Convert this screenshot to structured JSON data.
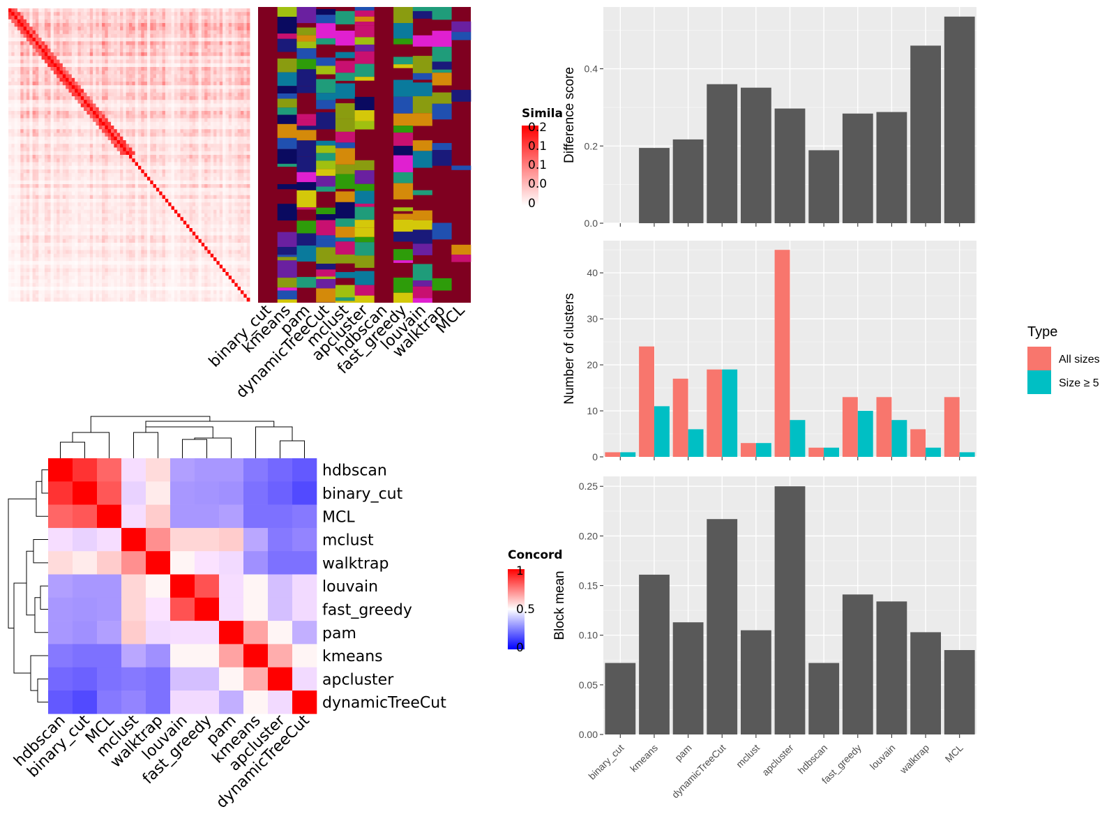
{
  "chart_data": [
    {
      "type": "heatmap",
      "id": "similarity_heatmap",
      "legend": {
        "title": "Simila",
        "labels": [
          "0.2",
          "0.1",
          "0.1",
          "0.0",
          "0"
        ]
      },
      "colors": {
        "high": "#ff0000",
        "low": "#ffffff"
      }
    },
    {
      "type": "heatmap",
      "id": "cluster_assignment_strip",
      "columns": [
        "binary_cut",
        "kmeans",
        "pam",
        "dynamicTreeCut",
        "mclust",
        "apcluster",
        "hdbscan",
        "fast_greedy",
        "louvain",
        "walktrap",
        "MCL"
      ],
      "colors": {
        "background": "#7f0020"
      }
    },
    {
      "type": "heatmap",
      "id": "concordance_heatmap",
      "legend": {
        "title": "Concord",
        "labels": [
          "1",
          "0.5",
          "0"
        ]
      },
      "colors": {
        "high": "#ff0000",
        "mid": "#ffffff",
        "low": "#0000ff"
      },
      "row_labels": [
        "hdbscan",
        "binary_cut",
        "MCL",
        "mclust",
        "walktrap",
        "louvain",
        "fast_greedy",
        "pam",
        "kmeans",
        "apcluster",
        "dynamicTreeCut"
      ],
      "col_labels": [
        "hdbscan",
        "binary_cut",
        "MCL",
        "mclust",
        "walktrap",
        "louvain",
        "fast_greedy",
        "pam",
        "kmeans",
        "apcluster",
        "dynamicTreeCut"
      ],
      "values": [
        [
          1.0,
          0.9,
          0.8,
          0.48,
          0.57,
          0.32,
          0.3,
          0.3,
          0.22,
          0.18,
          0.14
        ],
        [
          0.9,
          1.0,
          0.83,
          0.45,
          0.54,
          0.3,
          0.29,
          0.28,
          0.2,
          0.16,
          0.1
        ],
        [
          0.8,
          0.83,
          1.0,
          0.48,
          0.6,
          0.3,
          0.3,
          0.32,
          0.2,
          0.2,
          0.22
        ],
        [
          0.48,
          0.45,
          0.48,
          1.0,
          0.72,
          0.58,
          0.58,
          0.6,
          0.34,
          0.22,
          0.25
        ],
        [
          0.57,
          0.54,
          0.6,
          0.72,
          1.0,
          0.52,
          0.49,
          0.47,
          0.28,
          0.2,
          0.2
        ],
        [
          0.32,
          0.3,
          0.3,
          0.58,
          0.52,
          1.0,
          0.84,
          0.48,
          0.52,
          0.4,
          0.47
        ],
        [
          0.3,
          0.29,
          0.3,
          0.58,
          0.49,
          0.84,
          1.0,
          0.48,
          0.52,
          0.4,
          0.47
        ],
        [
          0.3,
          0.28,
          0.32,
          0.6,
          0.47,
          0.48,
          0.48,
          1.0,
          0.68,
          0.52,
          0.36
        ],
        [
          0.22,
          0.2,
          0.2,
          0.34,
          0.28,
          0.52,
          0.52,
          0.68,
          1.0,
          0.66,
          0.52
        ],
        [
          0.18,
          0.16,
          0.2,
          0.22,
          0.2,
          0.4,
          0.4,
          0.52,
          0.66,
          1.0,
          0.47
        ],
        [
          0.14,
          0.1,
          0.22,
          0.25,
          0.2,
          0.47,
          0.47,
          0.36,
          0.52,
          0.47,
          1.0
        ]
      ]
    },
    {
      "type": "bar",
      "id": "difference_score",
      "categories": [
        "binary_cut",
        "kmeans",
        "pam",
        "dynamicTreeCut",
        "mclust",
        "apcluster",
        "hdbscan",
        "fast_greedy",
        "louvain",
        "walktrap",
        "MCL"
      ],
      "values": [
        0.0,
        0.195,
        0.217,
        0.36,
        0.351,
        0.297,
        0.189,
        0.284,
        0.288,
        0.46,
        0.535
      ],
      "ylabel": "Difference score",
      "ylim": [
        0,
        0.56
      ],
      "yticks": [
        "0.0",
        "0.2",
        "0.4"
      ],
      "grid": true,
      "colors": {
        "bar": "#595959",
        "panel": "#ebebeb"
      }
    },
    {
      "type": "bar",
      "id": "number_of_clusters",
      "categories": [
        "binary_cut",
        "kmeans",
        "pam",
        "dynamicTreeCut",
        "mclust",
        "apcluster",
        "hdbscan",
        "fast_greedy",
        "louvain",
        "walktrap",
        "MCL"
      ],
      "series": [
        {
          "name": "All sizes",
          "values": [
            1,
            24,
            17,
            19,
            3,
            45,
            2,
            13,
            13,
            6,
            13
          ]
        },
        {
          "name": "Size ≥ 5",
          "values": [
            1,
            11,
            6,
            19,
            3,
            8,
            2,
            10,
            8,
            2,
            1
          ]
        }
      ],
      "ylabel": "Number of clusters",
      "ylim": [
        0,
        47
      ],
      "yticks": [
        "0",
        "10",
        "20",
        "30",
        "40"
      ],
      "legend": {
        "title": "Type",
        "position": "right"
      },
      "grid": true,
      "colors": {
        "All sizes": "#f8766d",
        "Size ≥ 5": "#00bfc4",
        "panel": "#ebebeb"
      }
    },
    {
      "type": "bar",
      "id": "block_mean",
      "categories": [
        "binary_cut",
        "kmeans",
        "pam",
        "dynamicTreeCut",
        "mclust",
        "apcluster",
        "hdbscan",
        "fast_greedy",
        "louvain",
        "walktrap",
        "MCL"
      ],
      "values": [
        0.072,
        0.161,
        0.113,
        0.217,
        0.105,
        0.25,
        0.072,
        0.141,
        0.134,
        0.103,
        0.085
      ],
      "ylabel": "Block mean",
      "ylim": [
        0,
        0.26
      ],
      "yticks": [
        "0.00",
        "0.05",
        "0.10",
        "0.15",
        "0.20",
        "0.25"
      ],
      "grid": true,
      "colors": {
        "bar": "#595959",
        "panel": "#ebebeb"
      }
    }
  ]
}
